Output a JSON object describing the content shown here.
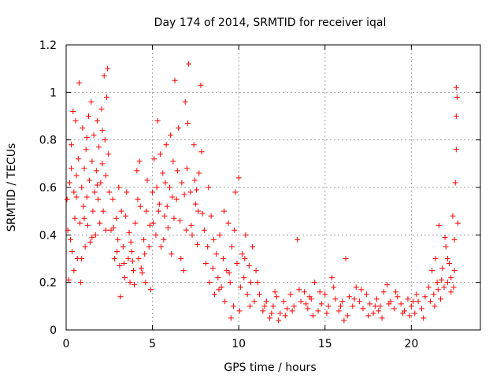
{
  "chart_data": {
    "type": "scatter",
    "title": "Day 174 of 2014, SRMTID for receiver iqal",
    "xlabel": "GPS time / hours",
    "ylabel": "SRMTID / TECUs",
    "xlim": [
      0,
      24
    ],
    "ylim": [
      0,
      1.2
    ],
    "xticks": [
      0,
      5,
      10,
      15,
      20
    ],
    "xtick_labels": [
      "0",
      "5",
      "10",
      "15",
      "20"
    ],
    "yticks": [
      0,
      0.2,
      0.4,
      0.6,
      0.8,
      1,
      1.2
    ],
    "ytick_labels": [
      "0",
      "0.2",
      "0.4",
      "0.6",
      "0.8",
      "1",
      "1.2"
    ],
    "grid": true,
    "marker": "+",
    "color": "#ff0000",
    "series": [
      {
        "name": "SRMTID iqal",
        "points": [
          [
            0.05,
            0.55
          ],
          [
            0.1,
            0.42
          ],
          [
            0.15,
            0.21
          ],
          [
            0.2,
            0.62
          ],
          [
            0.25,
            0.38
          ],
          [
            0.3,
            0.78
          ],
          [
            0.35,
            0.33
          ],
          [
            0.4,
            0.92
          ],
          [
            0.45,
            0.58
          ],
          [
            0.5,
            0.47
          ],
          [
            0.55,
            0.88
          ],
          [
            0.6,
            0.65
          ],
          [
            0.65,
            0.3
          ],
          [
            0.7,
            0.72
          ],
          [
            0.75,
            1.04
          ],
          [
            0.8,
            0.45
          ],
          [
            0.85,
            0.2
          ],
          [
            0.9,
            0.6
          ],
          [
            0.95,
            0.85
          ],
          [
            1.0,
            0.52
          ],
          [
            1.05,
            0.68
          ],
          [
            1.1,
            0.35
          ],
          [
            1.15,
            0.76
          ],
          [
            1.2,
            0.56
          ],
          [
            1.25,
            0.44
          ],
          [
            1.3,
            0.9
          ],
          [
            1.35,
            0.63
          ],
          [
            1.4,
            0.37
          ],
          [
            1.45,
            0.96
          ],
          [
            1.5,
            0.71
          ],
          [
            1.55,
            0.5
          ],
          [
            1.6,
            0.82
          ],
          [
            1.65,
            0.58
          ],
          [
            1.7,
            0.4
          ],
          [
            1.75,
            0.67
          ],
          [
            1.8,
            0.88
          ],
          [
            1.85,
            0.55
          ],
          [
            1.9,
            0.77
          ],
          [
            1.95,
            0.45
          ],
          [
            2.0,
            0.62
          ],
          [
            2.05,
            0.93
          ],
          [
            2.1,
            0.7
          ],
          [
            2.15,
            0.5
          ],
          [
            2.2,
            1.07
          ],
          [
            2.25,
            0.8
          ],
          [
            2.3,
            0.65
          ],
          [
            2.35,
            0.98
          ],
          [
            2.4,
            1.1
          ],
          [
            2.45,
            0.74
          ],
          [
            2.5,
            0.58
          ],
          [
            0.3,
            0.68
          ],
          [
            0.6,
            0.56
          ],
          [
            0.9,
            0.3
          ],
          [
            1.2,
            0.81
          ],
          [
            1.5,
            0.39
          ],
          [
            1.8,
            0.61
          ],
          [
            2.1,
            0.84
          ],
          [
            2.3,
            0.42
          ],
          [
            0.45,
            0.25
          ],
          [
            1.05,
            0.47
          ],
          [
            2.6,
            0.42
          ],
          [
            2.7,
            0.55
          ],
          [
            2.8,
            0.3
          ],
          [
            2.9,
            0.47
          ],
          [
            3.0,
            0.38
          ],
          [
            3.1,
            0.27
          ],
          [
            3.2,
            0.5
          ],
          [
            3.3,
            0.35
          ],
          [
            3.4,
            0.22
          ],
          [
            3.5,
            0.58
          ],
          [
            3.6,
            0.3
          ],
          [
            3.7,
            0.2
          ],
          [
            3.8,
            0.33
          ],
          [
            3.9,
            0.25
          ],
          [
            4.0,
            0.45
          ],
          [
            4.1,
            0.67
          ],
          [
            4.2,
            0.3
          ],
          [
            4.3,
            0.52
          ],
          [
            4.4,
            0.24
          ],
          [
            4.5,
            0.38
          ],
          [
            4.6,
            0.2
          ],
          [
            4.7,
            0.63
          ],
          [
            4.8,
            0.35
          ],
          [
            4.9,
            0.17
          ],
          [
            2.75,
            0.43
          ],
          [
            3.05,
            0.6
          ],
          [
            3.35,
            0.28
          ],
          [
            3.65,
            0.41
          ],
          [
            3.95,
            0.19
          ],
          [
            4.25,
            0.71
          ],
          [
            4.55,
            0.32
          ],
          [
            4.85,
            0.44
          ],
          [
            3.15,
            0.14
          ],
          [
            3.75,
            0.37
          ],
          [
            4.35,
            0.26
          ],
          [
            4.15,
            0.55
          ],
          [
            3.45,
            0.48
          ],
          [
            2.95,
            0.33
          ],
          [
            3.85,
            0.29
          ],
          [
            4.65,
            0.5
          ],
          [
            5.0,
            0.58
          ],
          [
            5.1,
            0.72
          ],
          [
            5.2,
            0.4
          ],
          [
            5.3,
            0.88
          ],
          [
            5.4,
            0.53
          ],
          [
            5.5,
            0.35
          ],
          [
            5.6,
            0.66
          ],
          [
            5.7,
            0.48
          ],
          [
            5.8,
            0.78
          ],
          [
            5.9,
            0.43
          ],
          [
            6.0,
            0.6
          ],
          [
            6.1,
            0.32
          ],
          [
            6.2,
            0.71
          ],
          [
            6.3,
            1.05
          ],
          [
            6.4,
            0.55
          ],
          [
            6.5,
            0.85
          ],
          [
            6.6,
            0.46
          ],
          [
            6.7,
            0.62
          ],
          [
            6.8,
            0.25
          ],
          [
            6.9,
            0.96
          ],
          [
            7.0,
            0.68
          ],
          [
            7.1,
            1.12
          ],
          [
            7.2,
            0.58
          ],
          [
            7.3,
            0.4
          ],
          [
            7.4,
            0.78
          ],
          [
            7.5,
            0.53
          ],
          [
            7.6,
            0.36
          ],
          [
            7.7,
            0.66
          ],
          [
            7.8,
            1.03
          ],
          [
            7.9,
            0.49
          ],
          [
            5.05,
            0.45
          ],
          [
            5.25,
            0.6
          ],
          [
            5.45,
            0.74
          ],
          [
            5.65,
            0.38
          ],
          [
            5.85,
            0.52
          ],
          [
            6.05,
            0.82
          ],
          [
            6.25,
            0.47
          ],
          [
            6.45,
            0.67
          ],
          [
            6.65,
            0.3
          ],
          [
            6.85,
            0.57
          ],
          [
            7.05,
            0.87
          ],
          [
            7.25,
            0.44
          ],
          [
            7.45,
            0.63
          ],
          [
            7.65,
            0.5
          ],
          [
            7.85,
            0.75
          ],
          [
            5.35,
            0.5
          ],
          [
            6.15,
            0.56
          ],
          [
            6.95,
            0.42
          ],
          [
            7.55,
            0.59
          ],
          [
            5.75,
            0.62
          ],
          [
            8.0,
            0.42
          ],
          [
            8.1,
            0.28
          ],
          [
            8.2,
            0.35
          ],
          [
            8.3,
            0.2
          ],
          [
            8.4,
            0.48
          ],
          [
            8.5,
            0.26
          ],
          [
            8.6,
            0.15
          ],
          [
            8.7,
            0.32
          ],
          [
            8.8,
            0.22
          ],
          [
            8.9,
            0.4
          ],
          [
            9.0,
            0.18
          ],
          [
            9.1,
            0.3
          ],
          [
            9.2,
            0.12
          ],
          [
            9.3,
            0.25
          ],
          [
            9.4,
            0.45
          ],
          [
            9.5,
            0.2
          ],
          [
            9.6,
            0.35
          ],
          [
            9.7,
            0.1
          ],
          [
            9.8,
            0.58
          ],
          [
            9.9,
            0.28
          ],
          [
            10.0,
            0.64
          ],
          [
            10.1,
            0.18
          ],
          [
            10.2,
            0.32
          ],
          [
            10.3,
            0.22
          ],
          [
            10.4,
            0.4
          ],
          [
            10.5,
            0.15
          ],
          [
            10.6,
            0.27
          ],
          [
            10.7,
            0.2
          ],
          [
            10.8,
            0.35
          ],
          [
            10.9,
            0.12
          ],
          [
            8.25,
            0.6
          ],
          [
            8.55,
            0.38
          ],
          [
            8.85,
            0.17
          ],
          [
            9.15,
            0.5
          ],
          [
            9.45,
            0.24
          ],
          [
            9.75,
            0.42
          ],
          [
            10.05,
            0.08
          ],
          [
            10.35,
            0.3
          ],
          [
            10.65,
            0.1
          ],
          [
            9.55,
            0.05
          ],
          [
            11.0,
            0.25
          ],
          [
            11.2,
            0.15
          ],
          [
            11.4,
            0.08
          ],
          [
            11.6,
            0.12
          ],
          [
            11.8,
            0.05
          ],
          [
            12.0,
            0.1
          ],
          [
            12.2,
            0.14
          ],
          [
            12.4,
            0.07
          ],
          [
            12.6,
            0.12
          ],
          [
            12.8,
            0.09
          ],
          [
            13.0,
            0.15
          ],
          [
            13.2,
            0.1
          ],
          [
            13.4,
            0.38
          ],
          [
            13.6,
            0.12
          ],
          [
            13.8,
            0.16
          ],
          [
            14.0,
            0.09
          ],
          [
            14.2,
            0.13
          ],
          [
            14.4,
            0.2
          ],
          [
            14.6,
            0.08
          ],
          [
            14.8,
            0.11
          ],
          [
            15.0,
            0.15
          ],
          [
            15.2,
            0.1
          ],
          [
            15.4,
            0.22
          ],
          [
            15.6,
            0.13
          ],
          [
            15.8,
            0.08
          ],
          [
            16.0,
            0.12
          ],
          [
            16.2,
            0.3
          ],
          [
            16.4,
            0.14
          ],
          [
            16.6,
            0.1
          ],
          [
            16.8,
            0.18
          ],
          [
            17.0,
            0.12
          ],
          [
            17.2,
            0.09
          ],
          [
            17.4,
            0.15
          ],
          [
            17.6,
            0.11
          ],
          [
            17.8,
            0.07
          ],
          [
            18.0,
            0.13
          ],
          [
            18.2,
            0.1
          ],
          [
            18.4,
            0.16
          ],
          [
            18.6,
            0.19
          ],
          [
            18.8,
            0.12
          ],
          [
            19.0,
            0.09
          ],
          [
            19.2,
            0.14
          ],
          [
            19.4,
            0.11
          ],
          [
            19.6,
            0.08
          ],
          [
            19.8,
            0.13
          ],
          [
            20.0,
            0.1
          ],
          [
            20.2,
            0.07
          ],
          [
            20.4,
            0.12
          ],
          [
            20.6,
            0.09
          ],
          [
            20.8,
            0.14
          ],
          [
            11.1,
            0.2
          ],
          [
            11.5,
            0.1
          ],
          [
            11.9,
            0.07
          ],
          [
            12.3,
            0.04
          ],
          [
            12.7,
            0.06
          ],
          [
            13.1,
            0.08
          ],
          [
            13.5,
            0.17
          ],
          [
            13.9,
            0.11
          ],
          [
            14.3,
            0.06
          ],
          [
            14.7,
            0.16
          ],
          [
            15.1,
            0.07
          ],
          [
            15.5,
            0.18
          ],
          [
            15.9,
            0.1
          ],
          [
            16.3,
            0.06
          ],
          [
            16.7,
            0.13
          ],
          [
            17.1,
            0.17
          ],
          [
            17.5,
            0.06
          ],
          [
            17.9,
            0.1
          ],
          [
            18.3,
            0.05
          ],
          [
            18.7,
            0.11
          ],
          [
            19.1,
            0.16
          ],
          [
            19.5,
            0.07
          ],
          [
            19.9,
            0.06
          ],
          [
            20.3,
            0.15
          ],
          [
            20.7,
            0.05
          ],
          [
            12.1,
            0.16
          ],
          [
            14.1,
            0.14
          ],
          [
            16.1,
            0.04
          ],
          [
            18.1,
            0.08
          ],
          [
            20.1,
            0.12
          ],
          [
            21.0,
            0.18
          ],
          [
            21.1,
            0.12
          ],
          [
            21.2,
            0.25
          ],
          [
            21.3,
            0.15
          ],
          [
            21.4,
            0.3
          ],
          [
            21.5,
            0.2
          ],
          [
            21.6,
            0.44
          ],
          [
            21.7,
            0.13
          ],
          [
            21.8,
            0.26
          ],
          [
            21.9,
            0.18
          ],
          [
            22.0,
            0.35
          ],
          [
            22.1,
            0.2
          ],
          [
            22.2,
            0.28
          ],
          [
            22.3,
            0.16
          ],
          [
            22.4,
            0.48
          ],
          [
            22.5,
            0.25
          ],
          [
            22.55,
            0.62
          ],
          [
            22.6,
            0.76
          ],
          [
            22.6,
            0.9
          ],
          [
            22.65,
            0.98
          ],
          [
            22.6,
            1.02
          ],
          [
            22.7,
            0.45
          ],
          [
            22.5,
            0.38
          ],
          [
            22.3,
            0.22
          ],
          [
            22.1,
            0.3
          ],
          [
            21.95,
            0.39
          ],
          [
            21.75,
            0.21
          ],
          [
            21.55,
            0.17
          ],
          [
            21.35,
            0.1
          ],
          [
            22.45,
            0.18
          ]
        ]
      }
    ]
  }
}
